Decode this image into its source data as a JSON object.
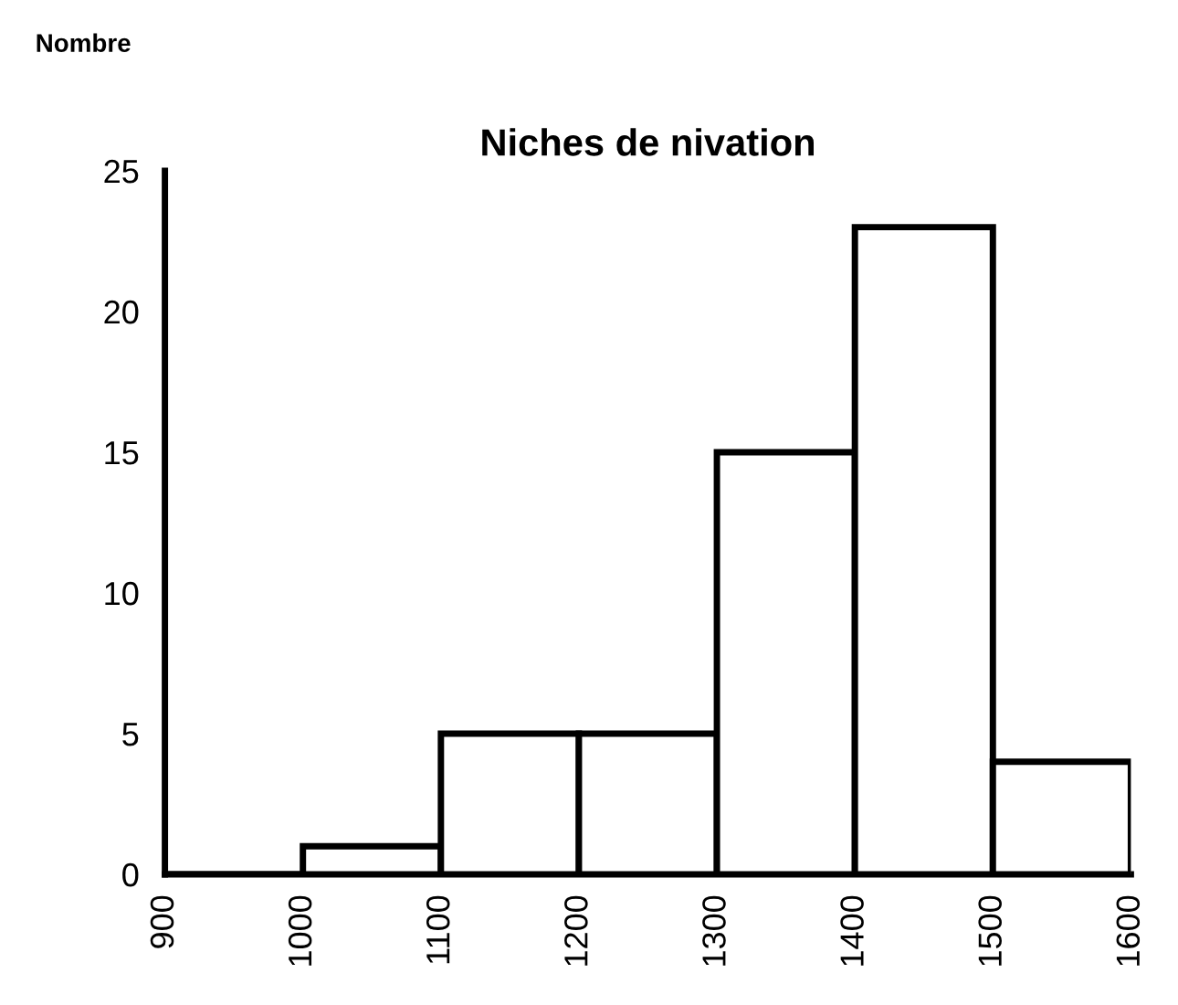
{
  "chart_data": {
    "type": "histogram",
    "title": "Niches de nivation",
    "ylabel": "Nombre",
    "bins": [
      900,
      1000,
      1100,
      1200,
      1300,
      1400,
      1500,
      1600
    ],
    "values": [
      0,
      1,
      5,
      5,
      15,
      23,
      4
    ],
    "color": "#ffffff",
    "xlim": [
      900,
      1600
    ],
    "xticks": [
      900,
      1000,
      1100,
      1200,
      1300,
      1400,
      1500,
      1600
    ],
    "ylim": [
      0,
      25
    ],
    "yticks": [
      0,
      5,
      10,
      15,
      20,
      25
    ],
    "grid": false,
    "legend": false
  }
}
